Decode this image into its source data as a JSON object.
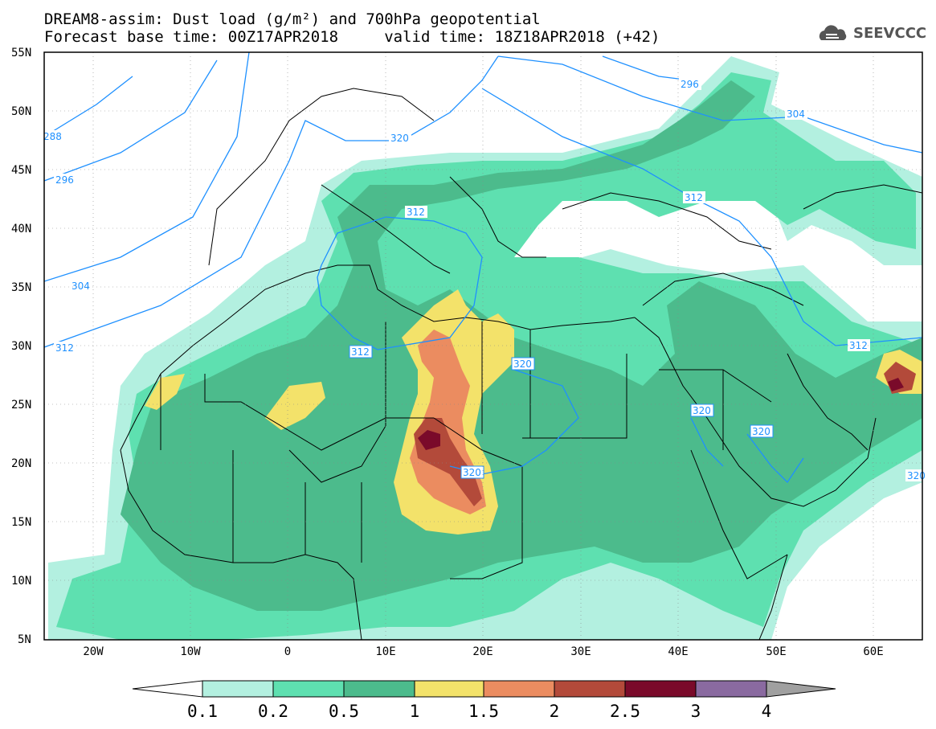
{
  "header": {
    "title_line1": "DREAM8-assim: Dust load (g/m²) and 700hPa geopotential",
    "title_line2": "Forecast base time: 00Z17APR2018     valid time: 18Z18APR2018 (+42)",
    "logo_text": "SEEVCCC"
  },
  "map": {
    "lon_range": [
      -25,
      65
    ],
    "lat_range": [
      5,
      55
    ],
    "lat_ticks": [
      "55N",
      "50N",
      "45N",
      "40N",
      "35N",
      "30N",
      "25N",
      "20N",
      "15N",
      "10N",
      "5N"
    ],
    "lon_ticks": [
      "20W",
      "10W",
      "0",
      "10E",
      "20E",
      "30E",
      "40E",
      "50E",
      "60E"
    ],
    "contour_color": "#1e90ff",
    "contour_labels": [
      "288",
      "296",
      "304",
      "312",
      "296",
      "304",
      "312",
      "320",
      "312",
      "312",
      "320",
      "320",
      "320",
      "312",
      "320",
      "320"
    ]
  },
  "colorbar": {
    "labels": [
      "0.1",
      "0.2",
      "0.5",
      "1",
      "1.5",
      "2",
      "2.5",
      "3",
      "4"
    ],
    "colors": [
      "#b3f0e0",
      "#5ee0b0",
      "#4cbb8c",
      "#f3e26a",
      "#eb8c60",
      "#b34a3a",
      "#7a0a2a",
      "#8a6aa0",
      "#a0a0a0"
    ]
  }
}
